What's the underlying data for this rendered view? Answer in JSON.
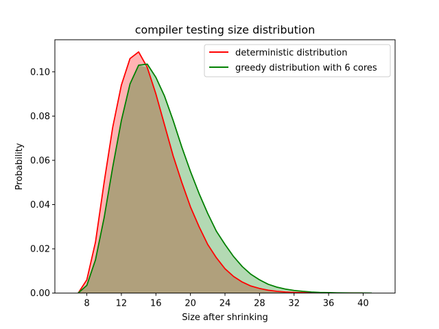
{
  "chart_data": {
    "type": "area",
    "title": "compiler testing size distribution",
    "xlabel": "Size after shrinking",
    "ylabel": "Probability",
    "xlim": [
      4.3,
      43.7
    ],
    "ylim": [
      0,
      0.1145
    ],
    "xticks": [
      8,
      12,
      16,
      20,
      24,
      28,
      32,
      36,
      40
    ],
    "yticks": [
      0.0,
      0.02,
      0.04,
      0.06,
      0.08,
      0.1
    ],
    "ytick_labels": [
      "0.00",
      "0.02",
      "0.04",
      "0.06",
      "0.08",
      "0.10"
    ],
    "legend_position": "upper right",
    "overlap_color": "#b0a07c",
    "series": [
      {
        "name": "deterministic distribution",
        "line_color": "#ff0000",
        "fill_color": "#ffb3b3",
        "x": [
          7,
          8,
          9,
          10,
          11,
          12,
          13,
          14,
          15,
          16,
          17,
          18,
          19,
          20,
          21,
          22,
          23,
          24,
          25,
          26,
          27,
          28,
          29,
          30,
          31,
          32,
          33,
          34,
          35,
          36,
          37,
          38,
          39,
          40
        ],
        "y": [
          0.0,
          0.006,
          0.023,
          0.05,
          0.075,
          0.094,
          0.106,
          0.109,
          0.102,
          0.09,
          0.076,
          0.062,
          0.05,
          0.039,
          0.03,
          0.022,
          0.016,
          0.011,
          0.0075,
          0.005,
          0.0032,
          0.0021,
          0.0013,
          0.0008,
          0.0005,
          0.0003,
          0.0002,
          0.0001,
          6e-05,
          3e-05,
          2e-05,
          1e-05,
          0.0,
          0.0
        ]
      },
      {
        "name": "greedy distribution with 6 cores",
        "line_color": "#008000",
        "fill_color": "#b3d9b3",
        "x": [
          7,
          8,
          9,
          10,
          11,
          12,
          13,
          14,
          15,
          16,
          17,
          18,
          19,
          20,
          21,
          22,
          23,
          24,
          25,
          26,
          27,
          28,
          29,
          30,
          31,
          32,
          33,
          34,
          35,
          36,
          37,
          38,
          39,
          40,
          41
        ],
        "y": [
          0.0,
          0.0035,
          0.015,
          0.034,
          0.057,
          0.078,
          0.0945,
          0.103,
          0.1035,
          0.0975,
          0.089,
          0.078,
          0.066,
          0.055,
          0.045,
          0.036,
          0.028,
          0.022,
          0.0165,
          0.012,
          0.0085,
          0.006,
          0.004,
          0.0027,
          0.0018,
          0.0012,
          0.0008,
          0.0005,
          0.0003,
          0.0002,
          0.0001,
          5e-05,
          2e-05,
          1e-05,
          0.0
        ]
      }
    ]
  }
}
